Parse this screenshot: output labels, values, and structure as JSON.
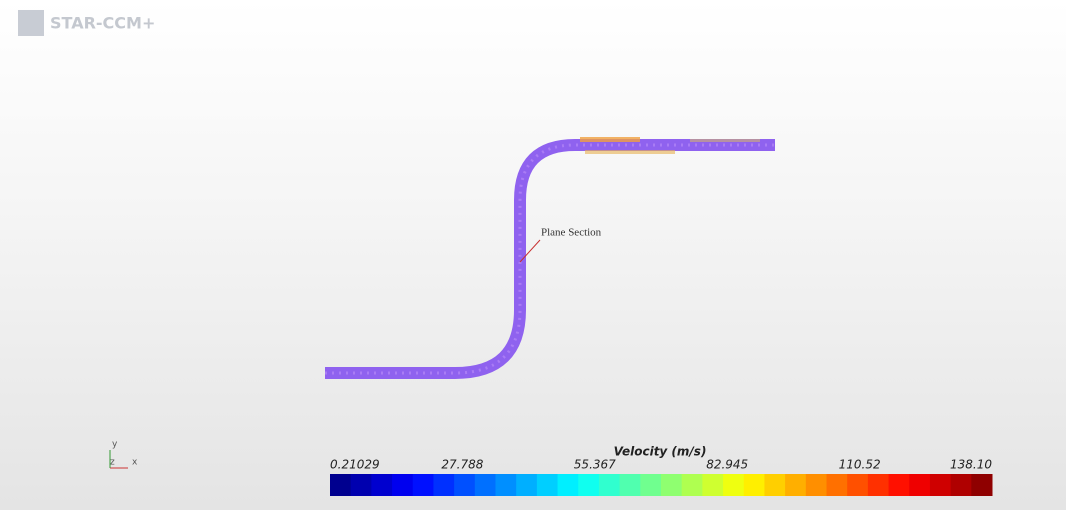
{
  "header": {
    "logo": "STAR-CCM+"
  },
  "scene": {
    "annotation": "Plane Section",
    "triad": {
      "x": "x",
      "y": "y",
      "z": "z"
    }
  },
  "colorbar": {
    "title": "Velocity (m/s)",
    "ticks": [
      "0.21029",
      "27.788",
      "55.367",
      "82.945",
      "110.52",
      "138.10"
    ]
  }
}
